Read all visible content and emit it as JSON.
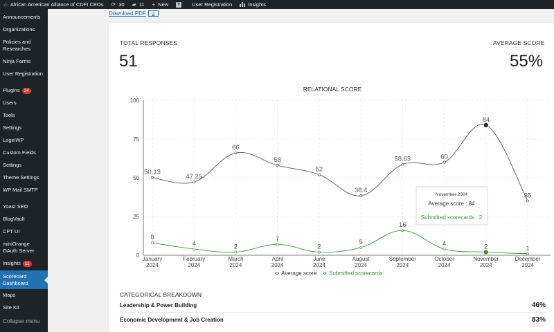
{
  "adminbar": {
    "site_name": "African American Alliance of CDFI CEOs",
    "updates_count": "30",
    "comments_count": "11",
    "new_label": "New",
    "user_registration_label": "User Registration",
    "insights_label": "Insights"
  },
  "sidebar": {
    "items": [
      {
        "label": "Announcements"
      },
      {
        "label": "Organizations"
      },
      {
        "label": "Policies and Researches"
      },
      {
        "label": "Ninja Forms"
      },
      {
        "label": "User Registration"
      },
      {
        "label": "Plugins",
        "badge": "24"
      },
      {
        "label": "Users"
      },
      {
        "label": "Tools"
      },
      {
        "label": "Settings"
      },
      {
        "label": "LoginWP"
      },
      {
        "label": "Custom Fields"
      },
      {
        "label": "Settings"
      },
      {
        "label": "Theme Settings"
      },
      {
        "label": "WP Mail SMTP"
      },
      {
        "label": "Yoast SEO"
      },
      {
        "label": "BlogVault"
      },
      {
        "label": "CPT UI"
      },
      {
        "label": "miniOrange OAuth Server"
      },
      {
        "label": "Insights",
        "badge": "11"
      },
      {
        "label": "Scorecard Dashboard",
        "active": true
      },
      {
        "label": "Maps"
      },
      {
        "label": "Site Kit"
      },
      {
        "label": "Collapse menu"
      }
    ]
  },
  "download_label": "Download PDF",
  "stats": {
    "total_responses_label": "TOTAL RESPONSES",
    "total_responses_value": "51",
    "average_score_label": "AVERAGE SCORE",
    "average_score_value": "55%"
  },
  "chart_data": {
    "type": "line",
    "title": "RELATIONAL SCORE",
    "categories": [
      "January 2024",
      "February 2024",
      "March 2024",
      "April 2024",
      "June 2024",
      "August 2024",
      "September 2024",
      "October 2024",
      "November 2024",
      "December 2024"
    ],
    "ylim": [
      0,
      100
    ],
    "yticks": [
      0,
      25,
      50,
      75,
      100
    ],
    "grid": true,
    "legend_position": "bottom",
    "series": [
      {
        "name": "Average score",
        "color": "#555555",
        "values": [
          50.13,
          47.25,
          66,
          58,
          52,
          38.4,
          58.63,
          60,
          84,
          35
        ],
        "labels": [
          "50.13",
          "47.25",
          "66",
          "58",
          "52",
          "38.4",
          "58.63",
          "60",
          "84",
          "35"
        ]
      },
      {
        "name": "Submitted scorecards",
        "color": "#3f8f3f",
        "values": [
          8,
          4,
          2,
          7,
          2,
          5,
          16,
          4,
          2,
          1
        ],
        "labels": [
          "8",
          "4",
          "2",
          "7",
          "2",
          "5",
          "16",
          "4",
          "2",
          "1"
        ]
      }
    ],
    "tooltip": {
      "title": "November 2024",
      "line1": "Average score : 84",
      "line2": "Submitted scorecards : 2"
    }
  },
  "breakdown": {
    "title": "CATEGORICAL BREAKDOWN",
    "rows": [
      {
        "name": "Leadership & Power Building",
        "value": "46%"
      },
      {
        "name": "Economic Development & Job Creation",
        "value": "83%"
      }
    ]
  }
}
